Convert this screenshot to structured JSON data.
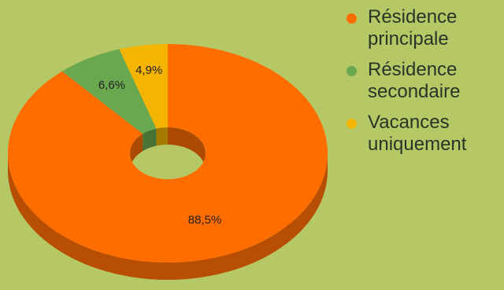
{
  "chart_data": {
    "type": "pie",
    "style": "3d-donut",
    "categories": [
      "Résidence principale",
      "Résidence secondaire",
      "Vacances uniquement"
    ],
    "values": [
      88.5,
      6.6,
      4.9
    ],
    "labels": [
      "88,5%",
      "6,6%",
      "4,9%"
    ],
    "colors": [
      "#ff6d01",
      "#6aa84f",
      "#f4b400"
    ],
    "legend_position": "right"
  },
  "legend": {
    "items": [
      {
        "line1": "Résidence",
        "line2": "principale",
        "color": "#ff6d01"
      },
      {
        "line1": "Résidence",
        "line2": "secondaire",
        "color": "#6aa84f"
      },
      {
        "line1": "Vacances",
        "line2": "uniquement",
        "color": "#f4b400"
      }
    ]
  },
  "colors": {
    "background": "#b5c865"
  }
}
